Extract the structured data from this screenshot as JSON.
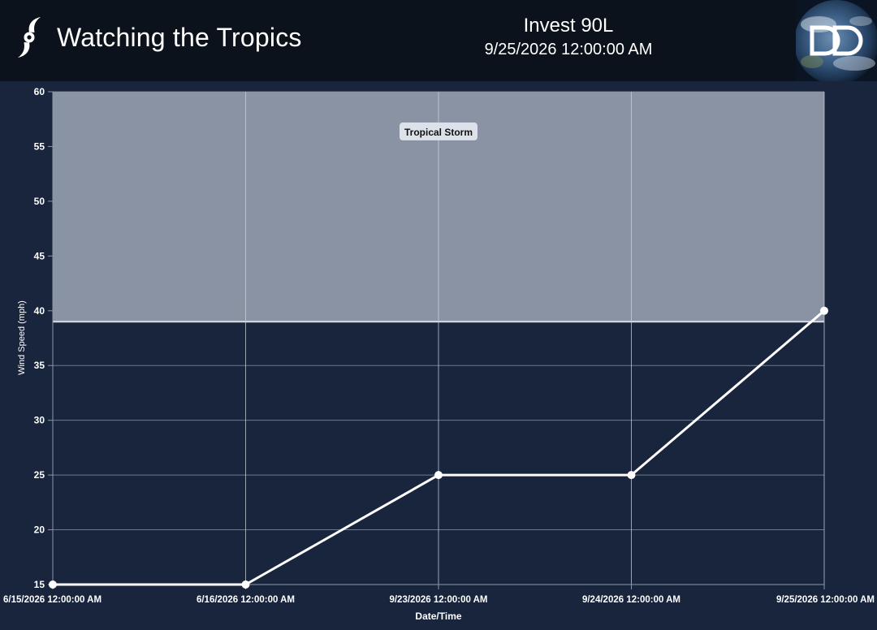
{
  "header": {
    "site_title": "Watching the Tropics",
    "storm_name": "Invest 90L",
    "storm_time": "9/25/2026 12:00:00 AM",
    "brand_icon": "hurricane-icon",
    "logo_icon": "dd-logo-icon"
  },
  "colors": {
    "header_bg": "#0b121b",
    "chart_bg": "#18253d",
    "band_fill": "#8a93a3",
    "grid": "#8d96a6",
    "line": "#ffffff"
  },
  "chart_data": {
    "type": "line",
    "x": [
      "6/15/2026 12:00:00 AM",
      "6/16/2026 12:00:00 AM",
      "9/23/2026 12:00:00 AM",
      "9/24/2026 12:00:00 AM",
      "9/25/2026 12:00:00 AM"
    ],
    "series": [
      {
        "values": [
          15,
          15,
          25,
          25,
          40
        ]
      }
    ],
    "xlabel": "Date/Time",
    "ylabel": "Wind Speed (mph)",
    "ylim": [
      15,
      60
    ],
    "yticks": [
      "15",
      "20",
      "25",
      "30",
      "35",
      "40",
      "45",
      "50",
      "55",
      "60"
    ],
    "grid": true,
    "bands": [
      {
        "label": "Tropical Storm",
        "from": 39,
        "to": 60
      }
    ]
  }
}
